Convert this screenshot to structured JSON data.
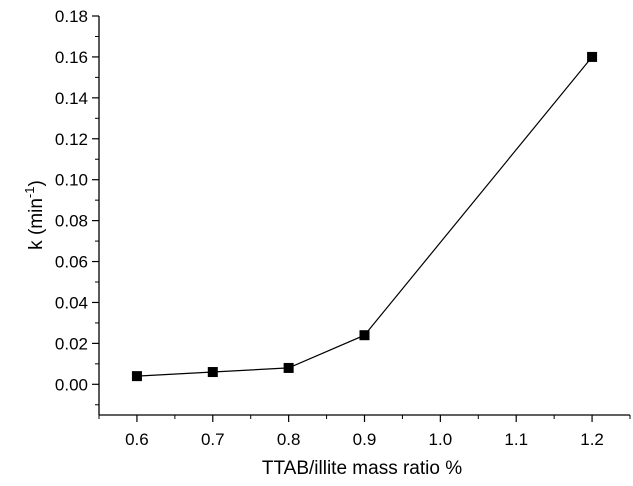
{
  "chart_data": {
    "type": "line",
    "title": "",
    "xlabel": "TTAB/illite mass ratio %",
    "ylabel": {
      "main": "k (min",
      "superscript": "-1",
      "close": ")"
    },
    "xlim": [
      0.55,
      1.25
    ],
    "ylim": [
      -0.015,
      0.18
    ],
    "x_ticks": [
      0.6,
      0.7,
      0.8,
      0.9,
      1.0,
      1.1,
      1.2
    ],
    "x_tick_labels": [
      "0.6",
      "0.7",
      "0.8",
      "0.9",
      "1.0",
      "1.1",
      "1.2"
    ],
    "y_ticks": [
      0.0,
      0.02,
      0.04,
      0.06,
      0.08,
      0.1,
      0.12,
      0.14,
      0.16,
      0.18
    ],
    "y_tick_labels": [
      "0.00",
      "0.02",
      "0.04",
      "0.06",
      "0.08",
      "0.10",
      "0.12",
      "0.14",
      "0.16",
      "0.18"
    ],
    "grid": false,
    "legend": "none",
    "marker": "square",
    "color": "#000000",
    "series": [
      {
        "x": [
          0.6,
          0.7,
          0.8,
          0.9,
          1.2
        ],
        "values": [
          0.004,
          0.006,
          0.008,
          0.024,
          0.16
        ]
      }
    ]
  }
}
